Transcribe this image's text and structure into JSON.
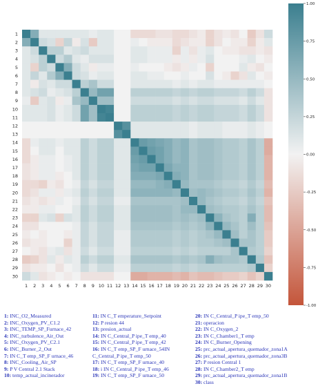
{
  "chart_data": {
    "type": "heatmap",
    "title": "",
    "xlabel": "",
    "ylabel": "",
    "size": 30,
    "row_labels": [
      "1",
      "2",
      "3",
      "4",
      "5",
      "6",
      "7",
      "8",
      "9",
      "10",
      "11",
      "12",
      "13",
      "14",
      "15",
      "16",
      "17",
      "18",
      "19",
      "20",
      "21",
      "22",
      "23",
      "24",
      "25",
      "26",
      "27",
      "28",
      "29",
      "30"
    ],
    "col_labels": [
      "1",
      "2",
      "3",
      "4",
      "5",
      "6",
      "7",
      "8",
      "9",
      "10",
      "11",
      "12",
      "13",
      "14",
      "15",
      "16",
      "17",
      "18",
      "19",
      "20",
      "21",
      "22",
      "23",
      "24",
      "25",
      "26",
      "27",
      "28",
      "29",
      "30"
    ],
    "colorbar": {
      "min": -1.0,
      "max": 1.0,
      "ticks": [
        "1.00",
        "0.75",
        "0.50",
        "0.25",
        "0.00",
        "-0.25",
        "-0.50",
        "-0.75",
        "-1.00"
      ],
      "colors": {
        "negative": "#c4553a",
        "neutral": "#f2f2f2",
        "positive": "#3b7f8f"
      }
    },
    "values": [
      [
        1,
        0.6,
        0.1,
        0.1,
        0.1,
        0.1,
        0.1,
        0.1,
        0.05,
        0.1,
        0.1,
        0,
        0,
        -0.15,
        -0.15,
        -0.15,
        -0.1,
        -0.1,
        -0.15,
        -0.15,
        -0.1,
        -0.05,
        -0.2,
        -0.1,
        -0.05,
        -0.1,
        0,
        -0.25,
        -0.1,
        0.2
      ],
      [
        0.6,
        1,
        0.2,
        0.15,
        -0.2,
        0.25,
        -0.05,
        0.15,
        -0.25,
        0.1,
        0.1,
        0,
        0,
        0.05,
        0,
        -0.05,
        -0.05,
        -0.05,
        -0.15,
        -0.1,
        -0.05,
        -0.05,
        -0.2,
        -0.1,
        0,
        -0.05,
        -0.05,
        -0.2,
        -0.05,
        0.1
      ],
      [
        0.1,
        0.2,
        1,
        0.3,
        0.3,
        0.1,
        0.15,
        0.2,
        0.1,
        0.1,
        0.1,
        0,
        0,
        0.1,
        0.1,
        0.05,
        0.05,
        0.05,
        -0.2,
        0.05,
        -0.1,
        0.05,
        0.1,
        0,
        -0.05,
        -0.05,
        -0.1,
        -0.1,
        -0.05,
        -0.1
      ],
      [
        0.1,
        0.15,
        0.3,
        1,
        0.2,
        0.35,
        0.1,
        0.05,
        0.15,
        0.15,
        0.15,
        0,
        0,
        0.1,
        0.1,
        0.05,
        0.05,
        0.05,
        -0.05,
        0.05,
        -0.05,
        0.05,
        0.15,
        0,
        0,
        0,
        0.05,
        0.1,
        0,
        -0.05
      ],
      [
        0.1,
        -0.2,
        0.3,
        0.2,
        1,
        0.6,
        0.2,
        0.1,
        -0.05,
        0.05,
        0.05,
        0,
        0,
        0.05,
        0,
        0,
        0,
        -0.05,
        -0.1,
        -0.05,
        0.05,
        0,
        -0.2,
        0,
        0,
        0,
        0.1,
        -0.05,
        -0.1,
        0
      ],
      [
        0.1,
        0.25,
        0.1,
        0.35,
        0.6,
        1,
        0.2,
        0.15,
        0.05,
        0.1,
        0.1,
        0,
        0,
        0.1,
        0.1,
        0.05,
        0.05,
        0,
        0,
        0.05,
        0,
        0,
        0.15,
        0,
        -0.05,
        -0.2,
        -0.1,
        0.1,
        0,
        -0.05
      ],
      [
        0.1,
        -0.05,
        0.15,
        0.1,
        0.2,
        0.2,
        1,
        0.3,
        0.4,
        0.2,
        0.2,
        0,
        0,
        0.1,
        0.1,
        0.1,
        0.1,
        0.1,
        0.05,
        0.1,
        0.05,
        0.1,
        0.1,
        0.05,
        0.05,
        0.05,
        0.05,
        0.05,
        0.05,
        0
      ],
      [
        0.1,
        0.15,
        0.2,
        0.05,
        0.1,
        0.15,
        0.3,
        1,
        0.5,
        0.7,
        0.7,
        0,
        0,
        0.3,
        0.3,
        0.3,
        0.3,
        0.3,
        0.25,
        0.3,
        0.25,
        0.3,
        0.3,
        0.25,
        0.25,
        0.25,
        0.2,
        0.3,
        0.2,
        -0.1
      ],
      [
        0.05,
        -0.25,
        0.1,
        0.15,
        -0.05,
        0.05,
        0.4,
        0.5,
        1,
        0.45,
        0.45,
        0,
        0,
        0.2,
        0.2,
        0.2,
        0.2,
        0.2,
        0.15,
        0.2,
        0.15,
        0.2,
        0.2,
        0.15,
        0.15,
        0.15,
        0.1,
        0.2,
        0.1,
        -0.1
      ],
      [
        0.1,
        0.1,
        0.1,
        0.15,
        0.05,
        0.1,
        0.2,
        0.7,
        0.45,
        1,
        0.95,
        0,
        0,
        0.3,
        0.3,
        0.3,
        0.3,
        0.3,
        0.25,
        0.3,
        0.25,
        0.3,
        0.3,
        0.25,
        0.25,
        0.25,
        0.2,
        0.3,
        0.2,
        -0.1
      ],
      [
        0.1,
        0.1,
        0.1,
        0.15,
        0.05,
        0.1,
        0.2,
        0.7,
        0.45,
        0.95,
        1,
        0,
        0,
        0.3,
        0.3,
        0.3,
        0.3,
        0.3,
        0.25,
        0.3,
        0.25,
        0.3,
        0.3,
        0.25,
        0.25,
        0.25,
        0.2,
        0.3,
        0.2,
        -0.1
      ],
      [
        0,
        0,
        0,
        0,
        0,
        0,
        0,
        0,
        0,
        0,
        0,
        1,
        0.85,
        0.1,
        0.1,
        0.1,
        0.1,
        0.1,
        0.1,
        0.1,
        0.05,
        0.1,
        0.1,
        0.1,
        0.05,
        0.05,
        0.05,
        0.1,
        0.05,
        0
      ],
      [
        0,
        0,
        0,
        0,
        0,
        0,
        0,
        0,
        0,
        0,
        0,
        0.85,
        1,
        0.1,
        0.1,
        0.1,
        0.1,
        0.1,
        0.1,
        0.1,
        0.05,
        0.1,
        0.1,
        0.1,
        0.05,
        0.05,
        0.05,
        0.1,
        0.05,
        0
      ],
      [
        -0.15,
        0.05,
        0.1,
        0.1,
        0.05,
        0.1,
        0.1,
        0.3,
        0.2,
        0.3,
        0.3,
        0.1,
        0.1,
        1,
        0.75,
        0.7,
        0.65,
        0.6,
        0.5,
        0.55,
        0.4,
        0.45,
        0.45,
        0.4,
        0.35,
        0.35,
        0.3,
        0.4,
        0.3,
        -0.45
      ],
      [
        -0.15,
        0,
        0.1,
        0.1,
        0,
        0.1,
        0.1,
        0.3,
        0.2,
        0.3,
        0.3,
        0.1,
        0.1,
        0.75,
        1,
        0.75,
        0.7,
        0.6,
        0.5,
        0.55,
        0.4,
        0.45,
        0.45,
        0.4,
        0.35,
        0.35,
        0.3,
        0.4,
        0.3,
        -0.45
      ],
      [
        -0.15,
        -0.05,
        0.05,
        0.05,
        0,
        0.05,
        0.1,
        0.3,
        0.2,
        0.3,
        0.3,
        0.1,
        0.1,
        0.7,
        0.75,
        1,
        0.7,
        0.6,
        0.5,
        0.55,
        0.4,
        0.45,
        0.45,
        0.4,
        0.35,
        0.35,
        0.3,
        0.4,
        0.3,
        -0.4
      ],
      [
        -0.1,
        -0.05,
        0.05,
        0.05,
        0,
        0.05,
        0.1,
        0.3,
        0.2,
        0.3,
        0.3,
        0.1,
        0.1,
        0.65,
        0.7,
        0.7,
        1,
        0.65,
        0.55,
        0.55,
        0.4,
        0.45,
        0.45,
        0.4,
        0.35,
        0.35,
        0.3,
        0.4,
        0.3,
        -0.4
      ],
      [
        -0.1,
        -0.05,
        0.05,
        0.05,
        -0.05,
        0,
        0.1,
        0.3,
        0.2,
        0.3,
        0.3,
        0.1,
        0.1,
        0.6,
        0.6,
        0.6,
        0.65,
        1,
        0.6,
        0.55,
        0.4,
        0.45,
        0.45,
        0.4,
        0.35,
        0.35,
        0.3,
        0.4,
        0.3,
        -0.4
      ],
      [
        -0.15,
        -0.15,
        -0.2,
        -0.05,
        -0.1,
        0,
        0.05,
        0.25,
        0.15,
        0.25,
        0.25,
        0.1,
        0.1,
        0.5,
        0.5,
        0.5,
        0.55,
        0.6,
        1,
        0.5,
        0.4,
        0.4,
        0.4,
        0.35,
        0.3,
        0.3,
        0.25,
        0.35,
        0.25,
        -0.35
      ],
      [
        -0.15,
        -0.1,
        0.05,
        0.05,
        -0.05,
        0.05,
        0.1,
        0.3,
        0.2,
        0.3,
        0.3,
        0.1,
        0.1,
        0.55,
        0.55,
        0.55,
        0.55,
        0.55,
        0.5,
        1,
        0.45,
        0.5,
        0.45,
        0.4,
        0.35,
        0.35,
        0.3,
        0.4,
        0.3,
        -0.4
      ],
      [
        -0.1,
        -0.05,
        -0.1,
        -0.05,
        0.05,
        0,
        0.05,
        0.25,
        0.15,
        0.25,
        0.25,
        0.05,
        0.05,
        0.4,
        0.4,
        0.4,
        0.4,
        0.4,
        0.4,
        0.45,
        1,
        0.5,
        0.4,
        0.35,
        0.3,
        0.3,
        0.25,
        0.35,
        0.25,
        -0.3
      ],
      [
        -0.05,
        -0.05,
        0.05,
        0.05,
        0,
        0,
        0.1,
        0.3,
        0.2,
        0.3,
        0.3,
        0.1,
        0.1,
        0.45,
        0.45,
        0.45,
        0.45,
        0.45,
        0.4,
        0.5,
        0.5,
        1,
        0.45,
        0.4,
        0.35,
        0.35,
        0.3,
        0.4,
        0.3,
        -0.35
      ],
      [
        -0.2,
        -0.2,
        0.1,
        0.15,
        -0.2,
        0.15,
        0.1,
        0.3,
        0.2,
        0.3,
        0.3,
        0.1,
        0.1,
        0.45,
        0.45,
        0.45,
        0.45,
        0.45,
        0.4,
        0.45,
        0.4,
        0.45,
        1,
        0.55,
        0.4,
        0.35,
        0.3,
        0.6,
        0.3,
        -0.35
      ],
      [
        -0.1,
        -0.1,
        0,
        0,
        0,
        0,
        0.05,
        0.25,
        0.15,
        0.25,
        0.25,
        0.1,
        0.1,
        0.4,
        0.4,
        0.4,
        0.4,
        0.4,
        0.35,
        0.4,
        0.35,
        0.4,
        0.55,
        1,
        0.5,
        0.4,
        0.3,
        0.45,
        0.3,
        -0.3
      ],
      [
        -0.05,
        0,
        -0.05,
        0,
        0,
        -0.05,
        0.05,
        0.25,
        0.15,
        0.25,
        0.25,
        0.05,
        0.05,
        0.35,
        0.35,
        0.35,
        0.35,
        0.35,
        0.3,
        0.35,
        0.3,
        0.35,
        0.4,
        0.5,
        1,
        0.45,
        0.3,
        0.4,
        0.3,
        -0.25
      ],
      [
        -0.1,
        -0.05,
        -0.05,
        0,
        0,
        -0.2,
        0.05,
        0.25,
        0.15,
        0.25,
        0.25,
        0.05,
        0.05,
        0.35,
        0.35,
        0.35,
        0.35,
        0.35,
        0.3,
        0.35,
        0.3,
        0.35,
        0.35,
        0.4,
        0.45,
        1,
        0.4,
        0.4,
        0.3,
        -0.25
      ],
      [
        0,
        -0.05,
        -0.1,
        0.05,
        0.1,
        -0.1,
        0.05,
        0.2,
        0.1,
        0.2,
        0.2,
        0.05,
        0.05,
        0.3,
        0.3,
        0.3,
        0.3,
        0.3,
        0.25,
        0.3,
        0.25,
        0.3,
        0.3,
        0.3,
        0.3,
        0.4,
        1,
        0.35,
        0.3,
        -0.2
      ],
      [
        -0.25,
        -0.2,
        -0.1,
        0.1,
        -0.05,
        0.1,
        0.05,
        0.3,
        0.2,
        0.3,
        0.3,
        0.1,
        0.1,
        0.4,
        0.4,
        0.4,
        0.4,
        0.4,
        0.35,
        0.4,
        0.35,
        0.4,
        0.6,
        0.45,
        0.4,
        0.4,
        0.35,
        1,
        0.35,
        -0.3
      ],
      [
        -0.1,
        -0.05,
        -0.05,
        0,
        -0.1,
        0,
        0.05,
        0.2,
        0.1,
        0.2,
        0.2,
        0.05,
        0.05,
        0.3,
        0.3,
        0.3,
        0.3,
        0.3,
        0.25,
        0.3,
        0.25,
        0.3,
        0.3,
        0.3,
        0.3,
        0.3,
        0.3,
        0.35,
        1,
        -0.2
      ],
      [
        0.2,
        0.1,
        -0.1,
        -0.05,
        0,
        -0.05,
        0,
        -0.1,
        -0.1,
        -0.1,
        -0.1,
        0,
        0,
        -0.45,
        -0.45,
        -0.4,
        -0.4,
        -0.4,
        -0.35,
        -0.4,
        -0.3,
        -0.35,
        -0.35,
        -0.3,
        -0.25,
        -0.25,
        -0.2,
        -0.3,
        -0.2,
        1
      ]
    ]
  },
  "legend": {
    "col_a": [
      {
        "n": "1:",
        "label": "INC_O2_Measured"
      },
      {
        "n": "2:",
        "label": "INC_Oxygen_PV_C1.2"
      },
      {
        "n": "3:",
        "label": "INC_TEMP_SP_Furnace_42"
      },
      {
        "n": "4:",
        "label": "INC_turbulence_Air_Out"
      },
      {
        "n": "5:",
        "label": "INC_Oxygen_PV_C2.1"
      },
      {
        "n": "6:",
        "label": "INC_Burner_2_Out"
      },
      {
        "n": "7:",
        "label": "IN C_T emp_SP_F urnace_46"
      },
      {
        "n": "8:",
        "label": "INC_Cooling_Air_SP"
      },
      {
        "n": "9:",
        "label": "P V Central 2.1 Stack"
      },
      {
        "n": "10:",
        "label": "temp_actual_incinerador"
      }
    ],
    "col_b": [
      {
        "n": "11:",
        "label": "IN C_T emperature_Setpoint"
      },
      {
        "n": "12:",
        "label": "P resion 44"
      },
      {
        "n": "13:",
        "label": "presion_actual"
      },
      {
        "n": "14:",
        "label": "IN C_Central_P ipe_T emp_40"
      },
      {
        "n": "15:",
        "label": "IN C_Central_P ipe_T emp_42"
      },
      {
        "n": "16:",
        "label": "IN C_T emp_SP_F urnace_54IN"
      },
      {
        "n": "",
        "label": "C_Central_P ipe_T emp_50"
      },
      {
        "n": "17:",
        "label": "IN C_T emp_SP_F urnace_40"
      },
      {
        "n": "18:",
        "label": "i IN C_Central_P ipe_T emp_46"
      },
      {
        "n": "19:",
        "label": "IN C_T emp_SP_F urnace_50"
      }
    ],
    "col_c": [
      {
        "n": "20:",
        "label": "IN C_Central_P ipe_T emp_50"
      },
      {
        "n": "21:",
        "label": "operacion"
      },
      {
        "n": "22:",
        "label": "IN C_Oxygen_2"
      },
      {
        "n": "23:",
        "label": "IN C_Chamber1_T emp"
      },
      {
        "n": "24:",
        "label": "IN C_Burner_Opening"
      },
      {
        "n": "25:",
        "label": "prc_actual_apertura_quemador_zona1A"
      },
      {
        "n": "26:",
        "label": "prc_actual_apertura_quemador_zona3B"
      },
      {
        "n": "27:",
        "label": "P resion Central 1"
      },
      {
        "n": "28:",
        "label": "IN C_Chamber2_T emp"
      },
      {
        "n": "29:",
        "label": "prc_actual_apertura_quemador_zona1B"
      },
      {
        "n": "30:",
        "label": "class"
      }
    ]
  }
}
